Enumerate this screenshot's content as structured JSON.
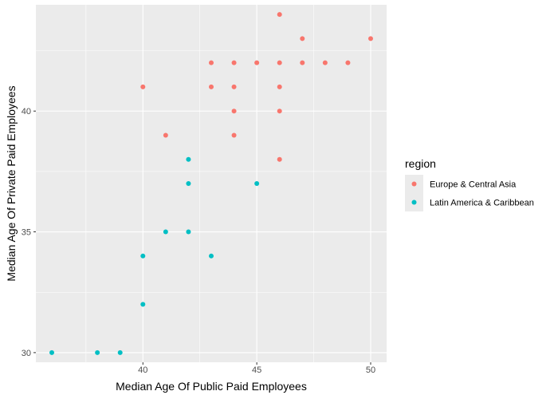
{
  "chart_data": {
    "type": "scatter",
    "title": "",
    "xlabel": "Median Age Of Public Paid Employees",
    "ylabel": "Median Age Of Private Paid Employees",
    "xlim": [
      35.3,
      50.7
    ],
    "ylim": [
      29.6,
      44.4
    ],
    "x_ticks": [
      40,
      45,
      50
    ],
    "x_minor": [
      37.5,
      42.5,
      47.5
    ],
    "y_ticks": [
      30,
      35,
      40
    ],
    "y_minor": [
      32.5,
      37.5,
      42.5
    ],
    "grid": true,
    "legend": {
      "title": "region",
      "position": "right"
    },
    "series": [
      {
        "name": "Europe & Central Asia",
        "color": "#F8766D",
        "points": [
          [
            46,
            44
          ],
          [
            47,
            43
          ],
          [
            50,
            43
          ],
          [
            43,
            42
          ],
          [
            44,
            42
          ],
          [
            45,
            42
          ],
          [
            46,
            42
          ],
          [
            47,
            42
          ],
          [
            48,
            42
          ],
          [
            49,
            42
          ],
          [
            40,
            41
          ],
          [
            43,
            41
          ],
          [
            44,
            41
          ],
          [
            46,
            41
          ],
          [
            44,
            40
          ],
          [
            46,
            40
          ],
          [
            41,
            39
          ],
          [
            44,
            39
          ],
          [
            46,
            38
          ]
        ]
      },
      {
        "name": "Latin America & Caribbean",
        "color": "#00BFC4",
        "points": [
          [
            42,
            38
          ],
          [
            42,
            37
          ],
          [
            45,
            37
          ],
          [
            41,
            35
          ],
          [
            42,
            35
          ],
          [
            40,
            34
          ],
          [
            43,
            34
          ],
          [
            40,
            32
          ],
          [
            36,
            30
          ],
          [
            38,
            30
          ],
          [
            39,
            30
          ]
        ]
      }
    ]
  }
}
